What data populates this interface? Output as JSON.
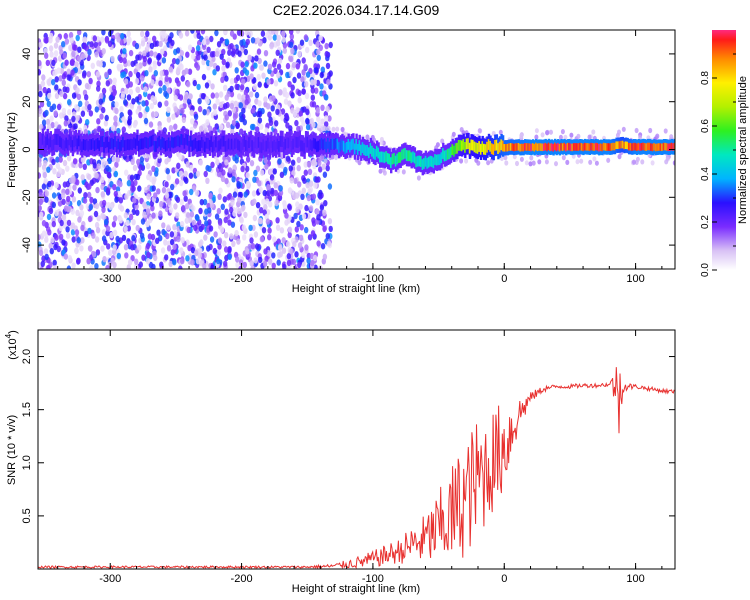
{
  "title": "C2E2.2026.034.17.14.G09",
  "colorbar": {
    "label": "Normalized spectral amplitude",
    "ticks": [
      "0.0",
      "0.2",
      "0.4",
      "0.6",
      "0.8"
    ],
    "tick_values": [
      0.0,
      0.2,
      0.4,
      0.6,
      0.8
    ],
    "range": [
      0,
      1
    ]
  },
  "colors": {
    "snr_line": "#e8312f",
    "background": "#ffffff"
  },
  "chart_data": [
    {
      "type": "heatmap",
      "name": "spectrogram",
      "xlabel": "Height of straight line (km)",
      "ylabel": "Frequency (Hz)",
      "xlim": [
        -355,
        130
      ],
      "ylim": [
        -50,
        50
      ],
      "x_ticks": [
        -300,
        -200,
        -100,
        0,
        100
      ],
      "x_tick_labels": [
        "-300",
        "-200",
        "-100",
        "0",
        "100"
      ],
      "y_ticks": [
        40,
        20,
        0,
        -20,
        -40
      ],
      "y_tick_labels": [
        "40",
        "20",
        "0",
        "-20",
        "-40"
      ],
      "noise_region_x": [
        -355,
        -140
      ],
      "signal_trace": {
        "x": [
          -355,
          -300,
          -250,
          -200,
          -150,
          -130,
          -110,
          -95,
          -85,
          -75,
          -65,
          -55,
          -48,
          -40,
          -30,
          -20,
          -10,
          0,
          20,
          50,
          80,
          90,
          100,
          130
        ],
        "freq": [
          3,
          2,
          3,
          2,
          2,
          2,
          1,
          -2,
          -5,
          -2,
          -5,
          -6,
          -3,
          0,
          2,
          1,
          1,
          1,
          1,
          1,
          1,
          2,
          1,
          1
        ],
        "amplitude": [
          0.25,
          0.3,
          0.3,
          0.25,
          0.25,
          0.35,
          0.45,
          0.5,
          0.55,
          0.55,
          0.5,
          0.5,
          0.45,
          0.6,
          0.75,
          0.8,
          0.85,
          0.95,
          1.0,
          1.0,
          1.0,
          0.9,
          1.0,
          1.0
        ]
      }
    },
    {
      "type": "line",
      "name": "snr",
      "xlabel": "Height of straight line (km)",
      "ylabel": "SNR (10 * v/v)",
      "yscale_label": "(x10",
      "yscale_exponent": "4",
      "xlim": [
        -355,
        130
      ],
      "ylim": [
        0,
        2.25
      ],
      "x_ticks": [
        -300,
        -200,
        -100,
        0,
        100
      ],
      "x_tick_labels": [
        "-300",
        "-200",
        "-100",
        "0",
        "100"
      ],
      "y_ticks": [
        0.5,
        1.0,
        1.5,
        2.0
      ],
      "y_tick_labels": [
        "0.5",
        "1.0",
        "1.5",
        "2.0"
      ],
      "series": [
        {
          "name": "SNR",
          "x": [
            -355,
            -300,
            -250,
            -200,
            -150,
            -130,
            -120,
            -110,
            -100,
            -90,
            -80,
            -70,
            -60,
            -50,
            -40,
            -30,
            -20,
            -10,
            0,
            10,
            20,
            30,
            40,
            50,
            60,
            70,
            80,
            85,
            88,
            90,
            100,
            110,
            120,
            130
          ],
          "values": [
            0.02,
            0.02,
            0.02,
            0.02,
            0.02,
            0.03,
            0.05,
            0.07,
            0.1,
            0.14,
            0.18,
            0.25,
            0.3,
            0.42,
            0.55,
            0.72,
            0.9,
            1.05,
            1.2,
            1.45,
            1.62,
            1.7,
            1.72,
            1.72,
            1.73,
            1.73,
            1.74,
            1.75,
            1.65,
            1.72,
            1.72,
            1.7,
            1.68,
            1.67
          ],
          "spread": [
            0.01,
            0.01,
            0.01,
            0.01,
            0.01,
            0.02,
            0.04,
            0.06,
            0.08,
            0.1,
            0.12,
            0.18,
            0.25,
            0.35,
            0.5,
            0.55,
            0.6,
            0.5,
            0.45,
            0.2,
            0.05,
            0.03,
            0.02,
            0.02,
            0.02,
            0.02,
            0.02,
            0.2,
            0.5,
            0.05,
            0.02,
            0.02,
            0.02,
            0.02
          ]
        }
      ]
    }
  ]
}
